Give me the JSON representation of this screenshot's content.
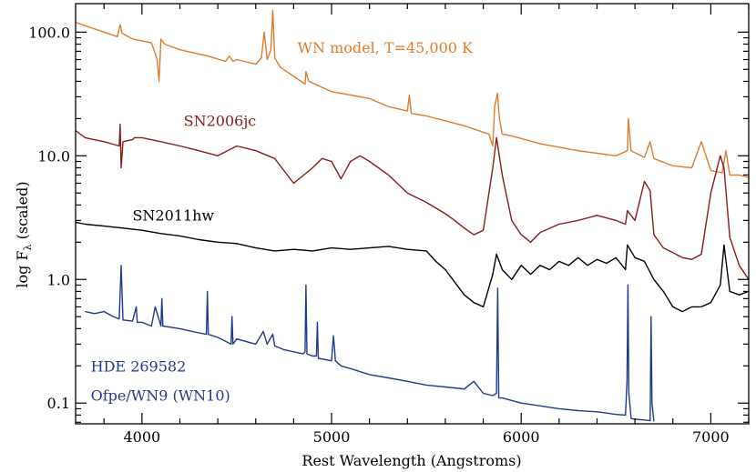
{
  "chart_data": {
    "type": "line",
    "title": "",
    "xlabel": "Rest Wavelength (Angstroms)",
    "ylabel_prefix": "log F",
    "ylabel_sub": "λ",
    "ylabel_suffix": " (scaled)",
    "xlim": [
      3650,
      7200
    ],
    "ylim_log": [
      0.068,
      170
    ],
    "y_scale": "log",
    "x_ticks": [
      4000,
      5000,
      6000,
      7000
    ],
    "x_ticklabels": [
      "4000",
      "5000",
      "6000",
      "7000"
    ],
    "y_ticks": [
      0.1,
      1.0,
      10.0,
      100.0
    ],
    "y_ticklabels": [
      "0.1",
      "1.0",
      "10.0",
      "100.0"
    ],
    "grid": false,
    "series": [
      {
        "name": "WN model, T=45,000 K",
        "color": "#e07b2c",
        "x": [
          3650,
          3800,
          3870,
          3885,
          3895,
          3950,
          4000,
          4050,
          4080,
          4090,
          4100,
          4120,
          4200,
          4350,
          4440,
          4460,
          4480,
          4500,
          4600,
          4630,
          4645,
          4660,
          4680,
          4690,
          4700,
          4730,
          4860,
          4865,
          4880,
          5000,
          5100,
          5200,
          5300,
          5400,
          5410,
          5420,
          5500,
          5700,
          5830,
          5850,
          5860,
          5875,
          5885,
          5900,
          5950,
          6100,
          6300,
          6500,
          6560,
          6565,
          6580,
          6650,
          6680,
          6700,
          6800,
          6900,
          6950,
          7000,
          7060,
          7080,
          7100,
          7150,
          7200
        ],
        "y": [
          120,
          100,
          92,
          115,
          98,
          88,
          85,
          82,
          60,
          40,
          88,
          80,
          72,
          64,
          58,
          64,
          58,
          60,
          55,
          62,
          100,
          60,
          72,
          150,
          62,
          52,
          38,
          48,
          40,
          33,
          31,
          29,
          25,
          23,
          31,
          22,
          21,
          17.5,
          15,
          12,
          25,
          32,
          20,
          15,
          14.5,
          12.5,
          11,
          10,
          11,
          20,
          11,
          9.7,
          13,
          9.5,
          8.3,
          8.0,
          13,
          7.6,
          7.3,
          11,
          7.0,
          7.0,
          6.7
        ]
      },
      {
        "name": "SN2006jc",
        "color": "#8b1a1a",
        "x": [
          3650,
          3700,
          3800,
          3880,
          3885,
          3890,
          3900,
          3950,
          3960,
          4000,
          4100,
          4200,
          4300,
          4400,
          4500,
          4600,
          4700,
          4800,
          4900,
          4950,
          5000,
          5050,
          5100,
          5150,
          5200,
          5300,
          5400,
          5500,
          5600,
          5650,
          5700,
          5750,
          5800,
          5850,
          5870,
          5900,
          5950,
          6000,
          6050,
          6100,
          6200,
          6300,
          6400,
          6500,
          6550,
          6560,
          6600,
          6650,
          6680,
          6700,
          6750,
          6800,
          6850,
          6900,
          6950,
          7000,
          7050,
          7070,
          7100,
          7150,
          7200
        ],
        "y": [
          16,
          14,
          13,
          12,
          18,
          8,
          13,
          13.5,
          14,
          14,
          13,
          12,
          11,
          10,
          12,
          11,
          9.5,
          6,
          8,
          9.5,
          9,
          6.5,
          9,
          10,
          9,
          7,
          5,
          4.2,
          3.4,
          3.0,
          2.6,
          2.3,
          2.5,
          8,
          14,
          7,
          3,
          2.3,
          2.0,
          2.4,
          2.8,
          3.0,
          3.3,
          3.0,
          2.8,
          3.6,
          3.0,
          6.2,
          5.2,
          2.3,
          1.8,
          1.65,
          1.5,
          1.45,
          1.6,
          5,
          10,
          8,
          2.2,
          1.3,
          1.0
        ]
      },
      {
        "name": "SN2011hw",
        "color": "#000000",
        "x": [
          3650,
          3700,
          3800,
          3900,
          4000,
          4100,
          4200,
          4300,
          4400,
          4500,
          4600,
          4700,
          4800,
          4900,
          5000,
          5100,
          5200,
          5300,
          5400,
          5500,
          5550,
          5600,
          5650,
          5700,
          5750,
          5800,
          5850,
          5870,
          5900,
          5950,
          6000,
          6050,
          6100,
          6150,
          6200,
          6250,
          6300,
          6350,
          6400,
          6450,
          6500,
          6550,
          6560,
          6600,
          6650,
          6700,
          6750,
          6800,
          6850,
          6900,
          6950,
          7000,
          7050,
          7070,
          7100,
          7150,
          7200
        ],
        "y": [
          2.9,
          2.8,
          2.7,
          2.6,
          2.5,
          2.35,
          2.25,
          2.1,
          2.0,
          1.95,
          1.8,
          1.7,
          1.75,
          1.7,
          1.8,
          1.75,
          1.8,
          1.85,
          1.75,
          1.7,
          1.4,
          1.2,
          0.95,
          0.75,
          0.65,
          0.6,
          1.1,
          1.6,
          1.2,
          1.0,
          1.3,
          1.1,
          1.3,
          1.2,
          1.4,
          1.3,
          1.5,
          1.3,
          1.45,
          1.35,
          1.5,
          1.2,
          1.9,
          1.5,
          1.4,
          1.0,
          0.8,
          0.6,
          0.55,
          0.6,
          0.6,
          0.65,
          0.9,
          1.9,
          0.8,
          0.75,
          0.8
        ]
      },
      {
        "name": "HDE 269582",
        "name2": "Ofpe/WN9 (WN10)",
        "color": "#1f3a8a",
        "x": [
          3700,
          3750,
          3800,
          3850,
          3880,
          3890,
          3900,
          3950,
          3970,
          3975,
          4000,
          4050,
          4070,
          4100,
          4105,
          4110,
          4200,
          4300,
          4340,
          4345,
          4350,
          4400,
          4470,
          4475,
          4480,
          4500,
          4600,
          4640,
          4660,
          4690,
          4700,
          4750,
          4800,
          4850,
          4860,
          4865,
          4870,
          4900,
          4920,
          4925,
          4930,
          5000,
          5010,
          5015,
          5020,
          5050,
          5100,
          5200,
          5300,
          5400,
          5500,
          5600,
          5700,
          5750,
          5800,
          5850,
          5870,
          5876,
          5882,
          5900,
          6000,
          6100,
          6200,
          6300,
          6400,
          6450,
          6500,
          6550,
          6558,
          6563,
          6568,
          6580,
          6600,
          6650,
          6680,
          6685,
          6690,
          6700
        ],
        "y": [
          0.55,
          0.53,
          0.55,
          0.5,
          0.48,
          1.3,
          0.47,
          0.46,
          0.6,
          0.45,
          0.45,
          0.42,
          0.6,
          0.42,
          0.7,
          0.42,
          0.4,
          0.37,
          0.36,
          0.8,
          0.36,
          0.34,
          0.3,
          0.5,
          0.3,
          0.33,
          0.3,
          0.38,
          0.3,
          0.36,
          0.29,
          0.27,
          0.26,
          0.25,
          0.26,
          0.9,
          0.25,
          0.24,
          0.24,
          0.45,
          0.23,
          0.22,
          0.35,
          0.28,
          0.22,
          0.2,
          0.19,
          0.17,
          0.16,
          0.15,
          0.14,
          0.135,
          0.13,
          0.15,
          0.12,
          0.115,
          0.12,
          0.85,
          0.11,
          0.11,
          0.1,
          0.095,
          0.09,
          0.087,
          0.085,
          0.083,
          0.081,
          0.08,
          0.15,
          0.9,
          0.12,
          0.075,
          0.074,
          0.073,
          0.072,
          0.5,
          0.1,
          0.071
        ]
      }
    ],
    "annotations": [
      {
        "text": "WN model, T=45,000 K",
        "x": 4820,
        "y": 68,
        "color": "#e07b2c"
      },
      {
        "text": "SN2006jc",
        "x": 4220,
        "y": 17.5,
        "color": "#8b1a1a"
      },
      {
        "text": "SN2011hw",
        "x": 3950,
        "y": 3.0,
        "color": "#000000"
      },
      {
        "text": "HDE 269582",
        "x": 3730,
        "y": 0.18,
        "color": "#1f3a8a"
      },
      {
        "text": "Ofpe/WN9 (WN10)",
        "x": 3730,
        "y": 0.105,
        "color": "#1f3a8a"
      }
    ]
  }
}
